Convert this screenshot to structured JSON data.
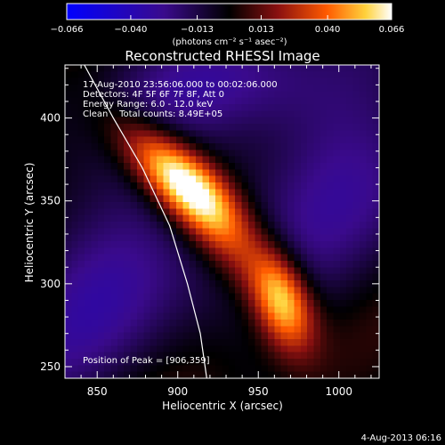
{
  "chart_data": {
    "type": "heatmap",
    "title": "Reconstructed RHESSI Image",
    "xlabel": "Heliocentric X (arcsec)",
    "ylabel": "Heliocentric Y (arcsec)",
    "xlim": [
      830,
      1025
    ],
    "ylim": [
      243,
      432
    ],
    "x_ticks": [
      "850",
      "900",
      "950",
      "1000"
    ],
    "y_ticks": [
      "250",
      "300",
      "350",
      "400"
    ],
    "colorbar": {
      "range": [
        -0.066,
        0.066
      ],
      "ticks": [
        "−0.066",
        "−0.040",
        "−0.013",
        "0.013",
        "0.040",
        "0.066"
      ],
      "unit_label": "(photons cm⁻² s⁻¹ asec⁻²)"
    },
    "annotations": [
      "17-Aug-2010 23:56:06.000 to 00:02:06.000",
      "Detectors: 4F 5F 6F 7F 8F, Att 0",
      "Energy Range: 6.0 - 12.0 keV",
      "Clean    Total counts: 8.49E+05"
    ],
    "peak_label": "Position of Peak = [906,359]",
    "sources": [
      {
        "x": 906,
        "y": 359,
        "peak": 0.066
      },
      {
        "x": 965,
        "y": 290,
        "peak": 0.058
      }
    ]
  },
  "footer": {
    "date": "4-Aug-2013 06:16"
  }
}
